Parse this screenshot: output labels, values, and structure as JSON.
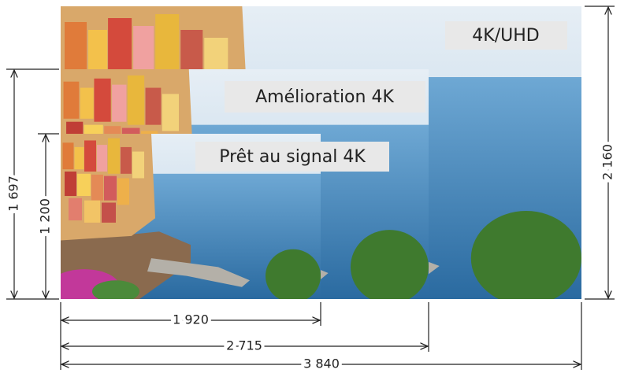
{
  "labels": {
    "uhd": "4K/UHD",
    "enhanced": "Amélioration 4K",
    "ready": "Prêt au signal 4K"
  },
  "dimensions": {
    "height_uhd": "2 160",
    "height_enhanced": "1 697",
    "height_ready": "1 200",
    "width_ready": "1 920",
    "width_enhanced": "2 715",
    "width_uhd": "3 840"
  }
}
